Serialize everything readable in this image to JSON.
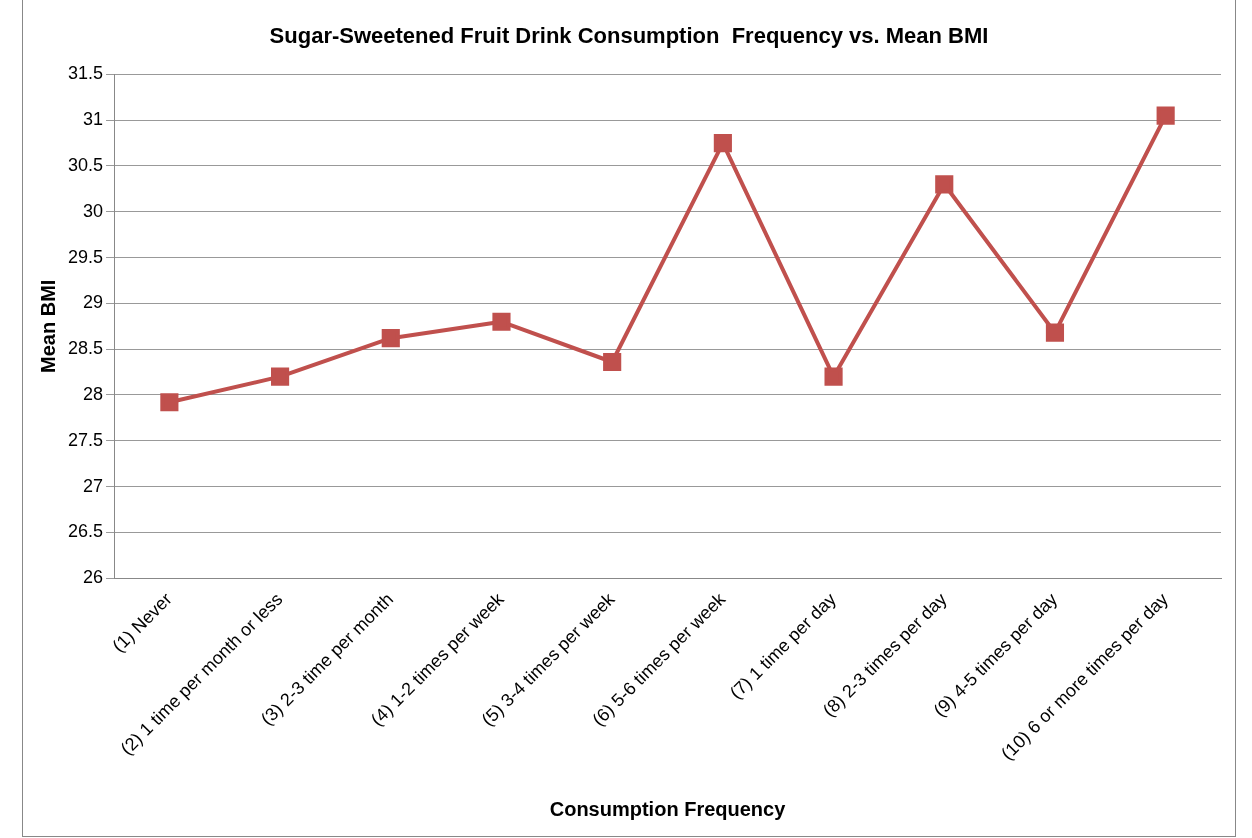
{
  "chart_data": {
    "type": "line",
    "title": "Sugar-Sweetened Fruit Drink Consumption  Frequency vs. Mean BMI",
    "xlabel": "Consumption Frequency",
    "ylabel": "Mean BMI",
    "categories": [
      "(1) Never",
      "(2) 1 time per month or less",
      "(3) 2-3 time per month",
      "(4) 1-2 times per week",
      "(5) 3-4 times per week",
      "(6) 5-6 times per week",
      "(7) 1 time per day",
      "(8) 2-3 times per day",
      "(9) 4-5 times per day",
      "(10) 6 or more times per day"
    ],
    "series": [
      {
        "color": "#c0504d",
        "values": [
          27.92,
          28.2,
          28.62,
          28.8,
          28.36,
          30.75,
          28.2,
          30.3,
          28.68,
          31.05
        ]
      }
    ],
    "ylim": [
      26,
      31.5
    ],
    "yticks": [
      26,
      26.5,
      27,
      27.5,
      28,
      28.5,
      29,
      29.5,
      30,
      30.5,
      31,
      31.5
    ],
    "grid": "y",
    "marker": "square",
    "line_style": "solid",
    "legend": false
  }
}
